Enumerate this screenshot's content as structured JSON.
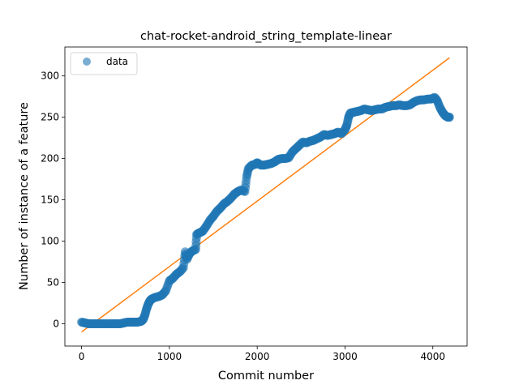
{
  "chart_data": {
    "type": "scatter",
    "title": "chat-rocket-android_string_template-linear",
    "xlabel": "Commit number",
    "ylabel": "Number of instance of a feature",
    "xlim": [
      -190,
      4390
    ],
    "ylim": [
      -27,
      335
    ],
    "xticks": [
      0,
      1000,
      2000,
      3000,
      4000
    ],
    "yticks": [
      0,
      50,
      100,
      150,
      200,
      250,
      300
    ],
    "legend": {
      "position": "top-left",
      "entries": [
        "data"
      ]
    },
    "colors": {
      "data": "#1f77b4",
      "fit": "#ff7f0e"
    },
    "series": [
      {
        "name": "data",
        "kind": "scatter",
        "points": [
          [
            0,
            2
          ],
          [
            40,
            1
          ],
          [
            80,
            0
          ],
          [
            120,
            0
          ],
          [
            160,
            0
          ],
          [
            200,
            0
          ],
          [
            240,
            0
          ],
          [
            280,
            0
          ],
          [
            320,
            0
          ],
          [
            360,
            0
          ],
          [
            400,
            0
          ],
          [
            440,
            0
          ],
          [
            480,
            1
          ],
          [
            520,
            2
          ],
          [
            560,
            2
          ],
          [
            600,
            2
          ],
          [
            640,
            2
          ],
          [
            680,
            3
          ],
          [
            700,
            5
          ],
          [
            720,
            10
          ],
          [
            740,
            18
          ],
          [
            760,
            24
          ],
          [
            780,
            28
          ],
          [
            800,
            30
          ],
          [
            840,
            32
          ],
          [
            880,
            33
          ],
          [
            920,
            35
          ],
          [
            960,
            40
          ],
          [
            1000,
            52
          ],
          [
            1040,
            55
          ],
          [
            1080,
            60
          ],
          [
            1120,
            63
          ],
          [
            1160,
            68
          ],
          [
            1180,
            87
          ],
          [
            1200,
            78
          ],
          [
            1230,
            85
          ],
          [
            1260,
            88
          ],
          [
            1300,
            90
          ],
          [
            1310,
            108
          ],
          [
            1340,
            110
          ],
          [
            1380,
            112
          ],
          [
            1420,
            118
          ],
          [
            1460,
            125
          ],
          [
            1500,
            130
          ],
          [
            1540,
            136
          ],
          [
            1580,
            140
          ],
          [
            1620,
            145
          ],
          [
            1660,
            148
          ],
          [
            1700,
            152
          ],
          [
            1740,
            157
          ],
          [
            1780,
            160
          ],
          [
            1820,
            162
          ],
          [
            1860,
            160
          ],
          [
            1880,
            178
          ],
          [
            1900,
            188
          ],
          [
            1940,
            192
          ],
          [
            1980,
            193
          ],
          [
            2000,
            195
          ],
          [
            2040,
            192
          ],
          [
            2080,
            192
          ],
          [
            2120,
            193
          ],
          [
            2160,
            194
          ],
          [
            2200,
            196
          ],
          [
            2240,
            199
          ],
          [
            2280,
            200
          ],
          [
            2320,
            200
          ],
          [
            2360,
            201
          ],
          [
            2400,
            208
          ],
          [
            2440,
            212
          ],
          [
            2480,
            216
          ],
          [
            2520,
            220
          ],
          [
            2560,
            219
          ],
          [
            2600,
            221
          ],
          [
            2640,
            222
          ],
          [
            2680,
            224
          ],
          [
            2720,
            226
          ],
          [
            2760,
            229
          ],
          [
            2800,
            228
          ],
          [
            2840,
            229
          ],
          [
            2880,
            230
          ],
          [
            2920,
            232
          ],
          [
            2960,
            230
          ],
          [
            3000,
            235
          ],
          [
            3020,
            240
          ],
          [
            3040,
            250
          ],
          [
            3060,
            255
          ],
          [
            3100,
            256
          ],
          [
            3140,
            257
          ],
          [
            3180,
            258
          ],
          [
            3220,
            260
          ],
          [
            3260,
            259
          ],
          [
            3300,
            258
          ],
          [
            3340,
            259
          ],
          [
            3380,
            260
          ],
          [
            3420,
            260
          ],
          [
            3460,
            262
          ],
          [
            3500,
            263
          ],
          [
            3540,
            264
          ],
          [
            3580,
            264
          ],
          [
            3620,
            265
          ],
          [
            3660,
            264
          ],
          [
            3700,
            264
          ],
          [
            3740,
            265
          ],
          [
            3780,
            268
          ],
          [
            3820,
            270
          ],
          [
            3860,
            271
          ],
          [
            3900,
            271
          ],
          [
            3940,
            272
          ],
          [
            3980,
            272
          ],
          [
            4020,
            274
          ],
          [
            4050,
            270
          ],
          [
            4080,
            262
          ],
          [
            4110,
            256
          ],
          [
            4140,
            252
          ],
          [
            4170,
            250
          ],
          [
            4190,
            250
          ]
        ]
      },
      {
        "name": "",
        "kind": "line",
        "points": [
          [
            0,
            -10
          ],
          [
            4190,
            322
          ]
        ]
      }
    ]
  }
}
